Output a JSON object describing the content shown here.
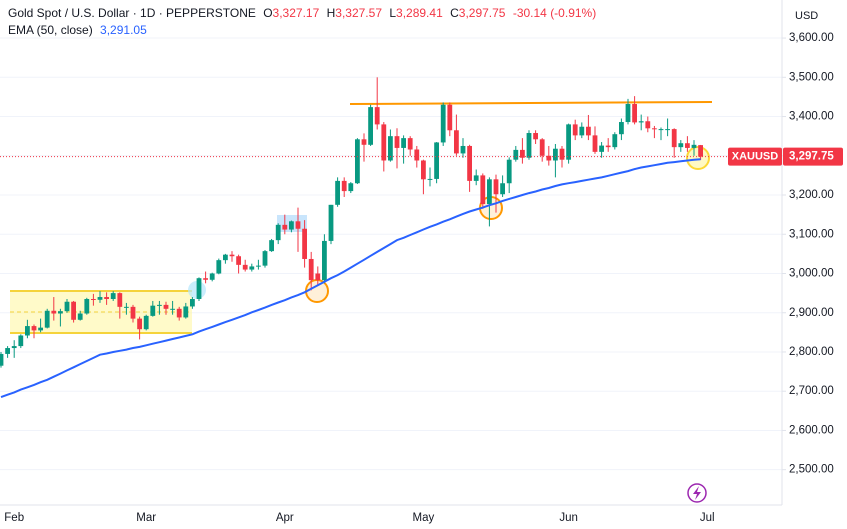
{
  "chart_data": {
    "type": "candlestick",
    "legend": {
      "symbol": "Gold Spot / U.S. Dollar · 1D · PEPPERSTONE",
      "fields": [
        {
          "key": "O",
          "value": "3,327.17"
        },
        {
          "key": "H",
          "value": "3,327.57"
        },
        {
          "key": "L",
          "value": "3,289.41"
        },
        {
          "key": "C",
          "value": "3,297.75"
        }
      ],
      "change": "-30.14 (-0.91%)"
    },
    "currency": "USD",
    "price_tag": {
      "symbol": "XAUUSD",
      "value": "3,297.75"
    },
    "up_color": "#089981",
    "down_color": "#f23645",
    "categories": [
      null,
      null,
      "Feb",
      null,
      null,
      null,
      null,
      null,
      null,
      null,
      null,
      null,
      null,
      null,
      null,
      null,
      null,
      null,
      null,
      null,
      null,
      null,
      "Mar",
      null,
      null,
      null,
      null,
      null,
      null,
      null,
      null,
      null,
      null,
      null,
      null,
      null,
      null,
      null,
      null,
      null,
      null,
      null,
      null,
      "Apr",
      null,
      null,
      null,
      null,
      null,
      null,
      null,
      null,
      null,
      null,
      null,
      null,
      null,
      null,
      null,
      null,
      null,
      null,
      null,
      null,
      "May",
      null,
      null,
      null,
      null,
      null,
      null,
      null,
      null,
      null,
      null,
      null,
      null,
      null,
      null,
      null,
      null,
      null,
      null,
      null,
      null,
      null,
      "Jun",
      null,
      null,
      null,
      null,
      null,
      null,
      null,
      null,
      null,
      null,
      null,
      null,
      null,
      null,
      null,
      null,
      null,
      null,
      null,
      null,
      "Jul"
    ],
    "ohlc": [
      [
        2765,
        2800,
        2760,
        2795
      ],
      [
        2795,
        2815,
        2785,
        2810
      ],
      [
        2810,
        2830,
        2785,
        2815
      ],
      [
        2815,
        2845,
        2810,
        2842
      ],
      [
        2842,
        2882,
        2835,
        2866
      ],
      [
        2866,
        2870,
        2835,
        2855
      ],
      [
        2855,
        2885,
        2850,
        2862
      ],
      [
        2862,
        2910,
        2860,
        2905
      ],
      [
        2905,
        2940,
        2880,
        2898
      ],
      [
        2898,
        2910,
        2865,
        2904
      ],
      [
        2904,
        2935,
        2900,
        2928
      ],
      [
        2928,
        2930,
        2875,
        2882
      ],
      [
        2882,
        2905,
        2880,
        2898
      ],
      [
        2898,
        2938,
        2895,
        2935
      ],
      [
        2935,
        2948,
        2918,
        2933
      ],
      [
        2933,
        2955,
        2925,
        2940
      ],
      [
        2940,
        2952,
        2920,
        2935
      ],
      [
        2935,
        2955,
        2930,
        2950
      ],
      [
        2950,
        2952,
        2885,
        2915
      ],
      [
        2915,
        2925,
        2895,
        2915
      ],
      [
        2915,
        2920,
        2875,
        2885
      ],
      [
        2885,
        2890,
        2832,
        2858
      ],
      [
        2858,
        2895,
        2855,
        2892
      ],
      [
        2892,
        2930,
        2890,
        2918
      ],
      [
        2918,
        2930,
        2895,
        2920
      ],
      [
        2920,
        2928,
        2895,
        2910
      ],
      [
        2910,
        2930,
        2895,
        2910
      ],
      [
        2910,
        2915,
        2880,
        2888
      ],
      [
        2888,
        2925,
        2885,
        2916
      ],
      [
        2916,
        2940,
        2910,
        2935
      ],
      [
        2935,
        2990,
        2930,
        2988
      ],
      [
        2988,
        3005,
        2975,
        2984
      ],
      [
        2984,
        3002,
        2980,
        3000
      ],
      [
        3000,
        3038,
        2998,
        3034
      ],
      [
        3034,
        3050,
        3025,
        3048
      ],
      [
        3048,
        3057,
        3030,
        3044
      ],
      [
        3044,
        3048,
        3000,
        3022
      ],
      [
        3022,
        3035,
        3005,
        3010
      ],
      [
        3010,
        3025,
        3005,
        3018
      ],
      [
        3018,
        3035,
        3010,
        3020
      ],
      [
        3020,
        3060,
        3015,
        3057
      ],
      [
        3057,
        3088,
        3055,
        3085
      ],
      [
        3085,
        3128,
        3075,
        3124
      ],
      [
        3124,
        3150,
        3100,
        3112
      ],
      [
        3112,
        3135,
        3105,
        3133
      ],
      [
        3133,
        3168,
        3055,
        3114
      ],
      [
        3114,
        3136,
        3015,
        3037
      ],
      [
        3037,
        3055,
        2957,
        2983
      ],
      [
        3000,
        3018,
        2970,
        2983
      ],
      [
        2983,
        3100,
        2975,
        3083
      ],
      [
        3083,
        3175,
        3075,
        3175
      ],
      [
        3175,
        3245,
        3170,
        3236
      ],
      [
        3236,
        3245,
        3195,
        3210
      ],
      [
        3210,
        3233,
        3205,
        3230
      ],
      [
        3230,
        3345,
        3228,
        3342
      ],
      [
        3342,
        3357,
        3285,
        3328
      ],
      [
        3328,
        3430,
        3325,
        3424
      ],
      [
        3424,
        3500,
        3367,
        3380
      ],
      [
        3380,
        3386,
        3260,
        3288
      ],
      [
        3288,
        3367,
        3285,
        3350
      ],
      [
        3350,
        3370,
        3268,
        3320
      ],
      [
        3320,
        3352,
        3280,
        3345
      ],
      [
        3345,
        3350,
        3300,
        3316
      ],
      [
        3316,
        3325,
        3270,
        3288
      ],
      [
        3288,
        3290,
        3202,
        3240
      ],
      [
        3240,
        3270,
        3222,
        3241
      ],
      [
        3241,
        3335,
        3230,
        3334
      ],
      [
        3334,
        3436,
        3325,
        3430
      ],
      [
        3430,
        3436,
        3350,
        3365
      ],
      [
        3365,
        3405,
        3300,
        3306
      ],
      [
        3306,
        3345,
        3295,
        3325
      ],
      [
        3325,
        3328,
        3208,
        3236
      ],
      [
        3236,
        3265,
        3225,
        3250
      ],
      [
        3250,
        3255,
        3165,
        3177
      ],
      [
        3177,
        3245,
        3120,
        3240
      ],
      [
        3240,
        3252,
        3155,
        3202
      ],
      [
        3202,
        3250,
        3195,
        3230
      ],
      [
        3230,
        3296,
        3205,
        3290
      ],
      [
        3290,
        3325,
        3285,
        3315
      ],
      [
        3315,
        3345,
        3280,
        3295
      ],
      [
        3295,
        3365,
        3290,
        3358
      ],
      [
        3358,
        3365,
        3330,
        3342
      ],
      [
        3342,
        3345,
        3285,
        3300
      ],
      [
        3300,
        3325,
        3275,
        3288
      ],
      [
        3288,
        3330,
        3245,
        3318
      ],
      [
        3318,
        3325,
        3270,
        3290
      ],
      [
        3290,
        3382,
        3280,
        3380
      ],
      [
        3380,
        3392,
        3340,
        3352
      ],
      [
        3352,
        3385,
        3345,
        3374
      ],
      [
        3374,
        3404,
        3340,
        3352
      ],
      [
        3352,
        3375,
        3305,
        3310
      ],
      [
        3310,
        3335,
        3295,
        3326
      ],
      [
        3326,
        3345,
        3310,
        3322
      ],
      [
        3322,
        3360,
        3316,
        3355
      ],
      [
        3355,
        3395,
        3340,
        3386
      ],
      [
        3386,
        3445,
        3380,
        3432
      ],
      [
        3432,
        3452,
        3380,
        3385
      ],
      [
        3385,
        3405,
        3365,
        3388
      ],
      [
        3388,
        3400,
        3360,
        3370
      ],
      [
        3370,
        3376,
        3345,
        3368
      ],
      [
        3368,
        3372,
        3340,
        3368
      ],
      [
        3368,
        3395,
        3350,
        3368
      ],
      [
        3368,
        3370,
        3295,
        3322
      ],
      [
        3322,
        3340,
        3310,
        3332
      ],
      [
        3332,
        3350,
        3310,
        3320
      ],
      [
        3320,
        3340,
        3300,
        3327.89
      ],
      [
        3327.17,
        3327.57,
        3289.41,
        3297.75
      ],
      null
    ],
    "ema": {
      "name": "EMA (50, close)",
      "value_label": "3,291.05",
      "color": "#2962ff",
      "values": [
        2685,
        2691,
        2697,
        2704,
        2710,
        2716,
        2723,
        2729,
        2737,
        2745,
        2753,
        2761,
        2769,
        2777,
        2785,
        2793,
        2796,
        2800,
        2803,
        2806,
        2810,
        2813,
        2817,
        2821,
        2825,
        2829,
        2833,
        2837,
        2841,
        2845,
        2852,
        2858,
        2864,
        2870,
        2876,
        2882,
        2888,
        2894,
        2901,
        2907,
        2913,
        2920,
        2926,
        2932,
        2939,
        2945,
        2952,
        2961,
        2970,
        2979,
        2988,
        2996,
        3005,
        3015,
        3025,
        3035,
        3045,
        3055,
        3065,
        3075,
        3085,
        3091,
        3098,
        3105,
        3112,
        3119,
        3125,
        3132,
        3138,
        3145,
        3152,
        3158,
        3163,
        3168,
        3174,
        3179,
        3185,
        3190,
        3195,
        3200,
        3205,
        3209,
        3214,
        3218,
        3223,
        3227,
        3230,
        3233,
        3236,
        3239,
        3242,
        3245,
        3249,
        3253,
        3257,
        3261,
        3266,
        3270,
        3273,
        3276,
        3279,
        3282,
        3284,
        3286,
        3288,
        3290,
        3291.05,
        null
      ]
    },
    "ylim": [
      2410,
      3697
    ],
    "yticks": [
      {
        "value": 2500,
        "label": "2,500.00"
      },
      {
        "value": 2600,
        "label": "2,600.00"
      },
      {
        "value": 2700,
        "label": "2,700.00"
      },
      {
        "value": 2800,
        "label": "2,800.00"
      },
      {
        "value": 2900,
        "label": "2,900.00"
      },
      {
        "value": 3000,
        "label": "3,000.00"
      },
      {
        "value": 3100,
        "label": "3,100.00"
      },
      {
        "value": 3200,
        "label": "3,200.00"
      },
      {
        "value": 3300,
        "label": "3,300.00"
      },
      {
        "value": 3400,
        "label": "3,400.00"
      },
      {
        "value": 3500,
        "label": "3,500.00"
      },
      {
        "value": 3600,
        "label": "3,600.00"
      }
    ],
    "grid": true
  }
}
